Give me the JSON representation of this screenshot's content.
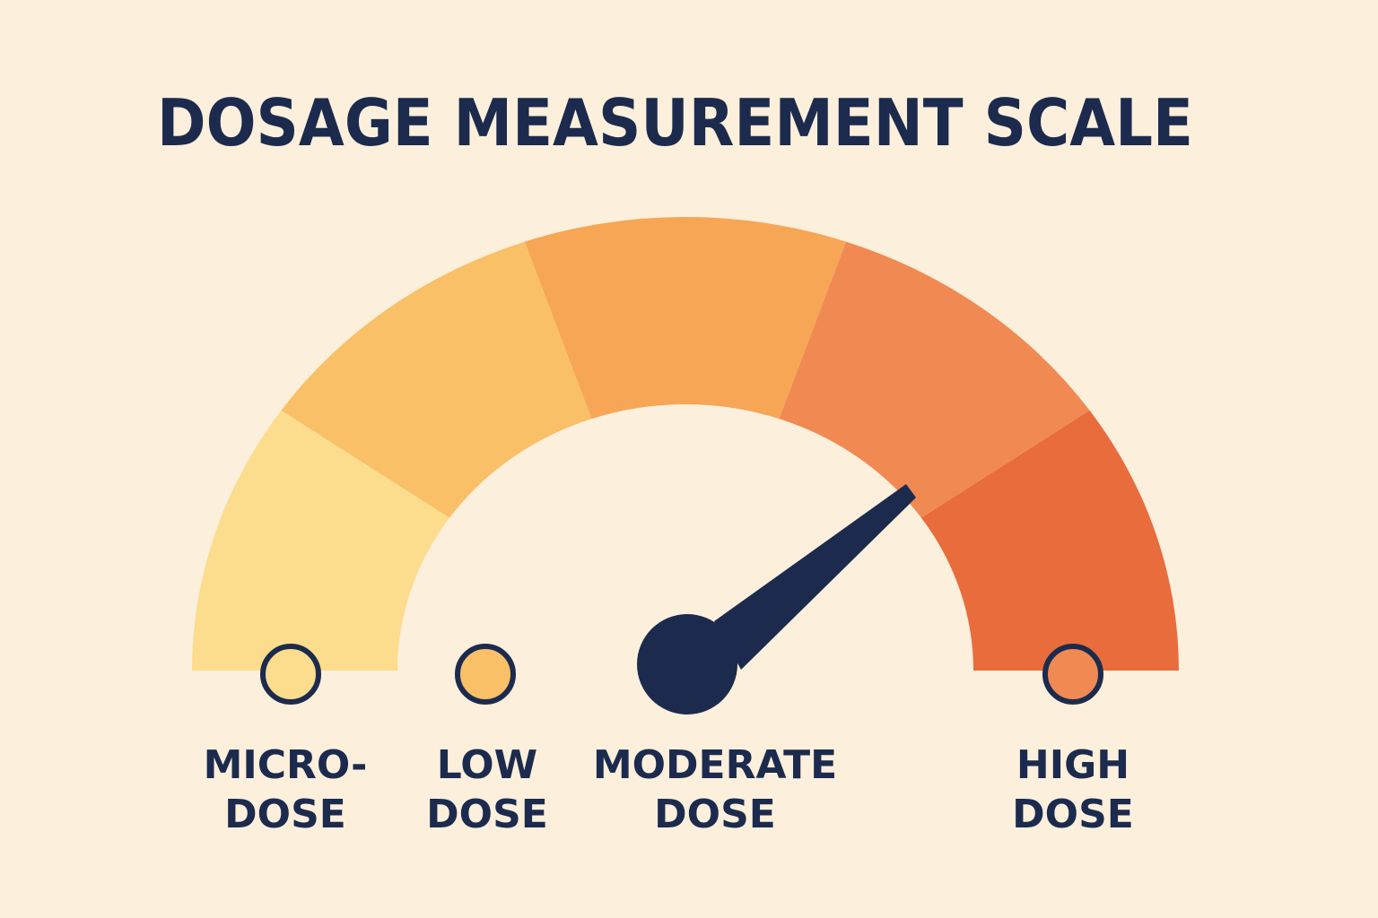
{
  "title": "DOSAGE MEASUREMENT SCALE",
  "labels": [
    {
      "lines": [
        "MICRO-",
        "DOSE"
      ]
    },
    {
      "lines": [
        "LOW",
        "DOSE"
      ]
    },
    {
      "lines": [
        "MODERATE",
        "DOSE"
      ]
    },
    {
      "lines": [
        "HIGH",
        "DOSE"
      ]
    }
  ]
}
